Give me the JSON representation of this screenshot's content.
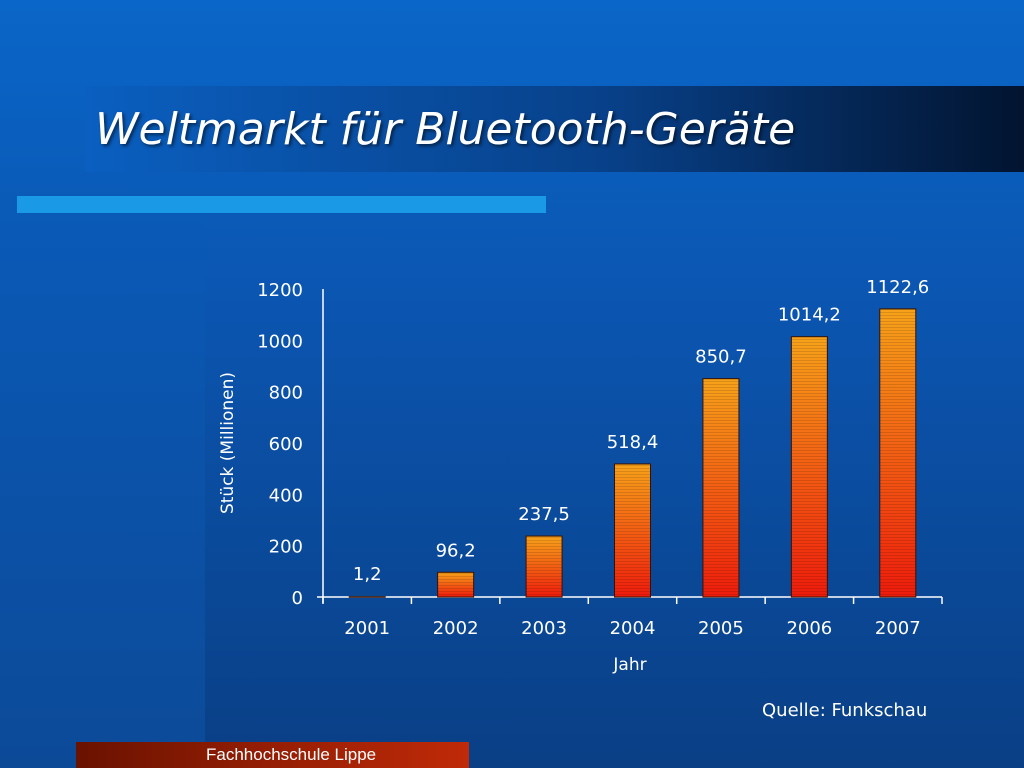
{
  "slide": {
    "title": "Weltmarkt für Bluetooth-Geräte",
    "source": "Quelle: Funkschau",
    "footer": "Fachhochschule Lippe",
    "colors": {
      "background": "#0b55b0",
      "accent_bar": "#1a9ae6",
      "bar_top": "#f7a21a",
      "bar_bottom": "#ee1c0c",
      "footer": "#c02a08"
    }
  },
  "chart_data": {
    "type": "bar",
    "categories": [
      "2001",
      "2002",
      "2003",
      "2004",
      "2005",
      "2006",
      "2007"
    ],
    "values": [
      1.2,
      96.2,
      237.5,
      518.4,
      850.7,
      1014.2,
      1122.6
    ],
    "value_labels": [
      "1,2",
      "96,2",
      "237,5",
      "518,4",
      "850,7",
      "1014,2",
      "1122,6"
    ],
    "title": "",
    "xlabel": "Jahr",
    "ylabel": "Stück (Millionen)",
    "ylim": [
      0,
      1200
    ],
    "yticks": [
      "0",
      "200",
      "400",
      "600",
      "800",
      "1000",
      "1200"
    ],
    "grid": false,
    "legend": "none"
  }
}
